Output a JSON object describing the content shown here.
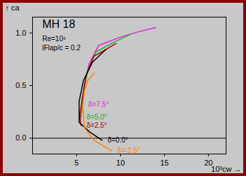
{
  "chart_data": {
    "type": "line",
    "title": "MH 18",
    "subtitle": [
      "Re=10⁶",
      "lFlap/c = 0.2"
    ],
    "x_label": "10³cw",
    "y_label": "ca",
    "xlim": [
      0,
      22
    ],
    "ylim": [
      -0.15,
      1.15
    ],
    "xticks": [
      5,
      10,
      15,
      20
    ],
    "yticks": [
      0,
      0.5,
      1
    ],
    "series": [
      {
        "name": "δ=7.5°",
        "color": "#e020e0",
        "x": [
          5.7,
          5.9,
          6.4,
          7.5,
          10,
          12,
          14
        ],
        "values": [
          0.32,
          0.5,
          0.7,
          0.88,
          0.96,
          1.01,
          1.05
        ]
      },
      {
        "name": "δ=5.0°",
        "color": "#20b020",
        "x": [
          5.5,
          5.8,
          6.3,
          7.2,
          9,
          11.2
        ],
        "values": [
          0.2,
          0.45,
          0.65,
          0.82,
          0.9,
          0.99
        ]
      },
      {
        "name": "δ=2.5°",
        "color": "#a00000",
        "x": [
          5.5,
          5.4,
          5.6,
          6.1,
          7,
          8.5,
          9.5
        ],
        "values": [
          0.12,
          0.22,
          0.35,
          0.6,
          0.78,
          0.85,
          0.9
        ]
      },
      {
        "name": "δ=0.0°",
        "color": "#000000",
        "x": [
          7.9,
          6.5,
          5.3,
          5.3,
          5.8,
          6.8,
          8.3
        ],
        "values": [
          -0.02,
          0.06,
          0.15,
          0.35,
          0.55,
          0.72,
          0.84
        ]
      },
      {
        "name": "δ=-2.5°",
        "color": "#ff8000",
        "x": [
          9,
          7,
          5.9,
          5.7,
          5.9,
          6.3,
          7
        ],
        "values": [
          -0.12,
          -0.02,
          0.1,
          0.3,
          0.45,
          0.55,
          0.62
        ]
      }
    ],
    "grid": false
  }
}
